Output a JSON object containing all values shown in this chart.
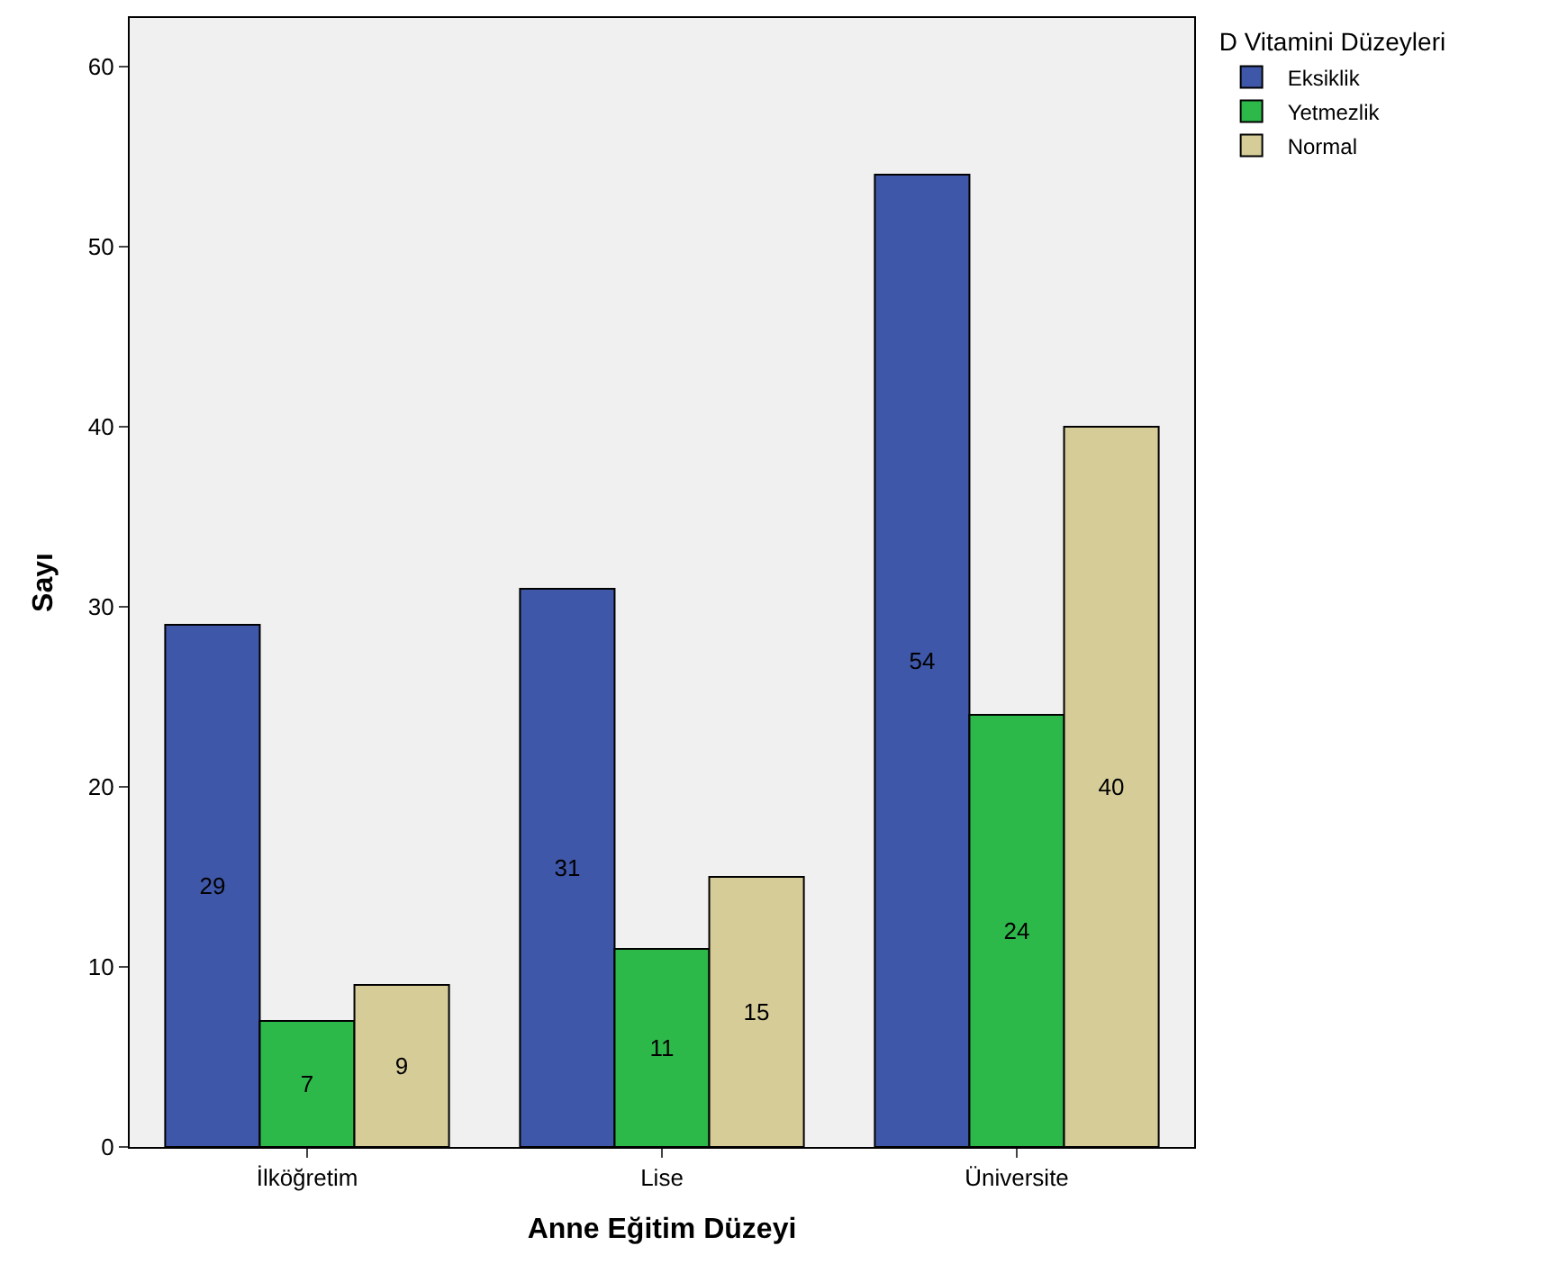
{
  "chart_data": {
    "type": "bar",
    "xlabel": "Anne Eğitim Düzeyi",
    "ylabel": "Sayı",
    "legend_title": "D Vitamini Düzeyleri",
    "categories": [
      "İlköğretim",
      "Lise",
      "Üniversite"
    ],
    "series": [
      {
        "name": "Eksiklik",
        "color": "#3f57a8",
        "values": [
          29,
          31,
          54
        ]
      },
      {
        "name": "Yetmezlik",
        "color": "#2db84a",
        "values": [
          7,
          11,
          24
        ]
      },
      {
        "name": "Normal",
        "color": "#d5cc98",
        "values": [
          9,
          15,
          40
        ]
      }
    ],
    "ylim": [
      0,
      62.7
    ],
    "yticks": [
      0,
      10,
      20,
      30,
      40,
      50,
      60
    ],
    "grid": false,
    "legend": "top right",
    "data_labels": true
  }
}
